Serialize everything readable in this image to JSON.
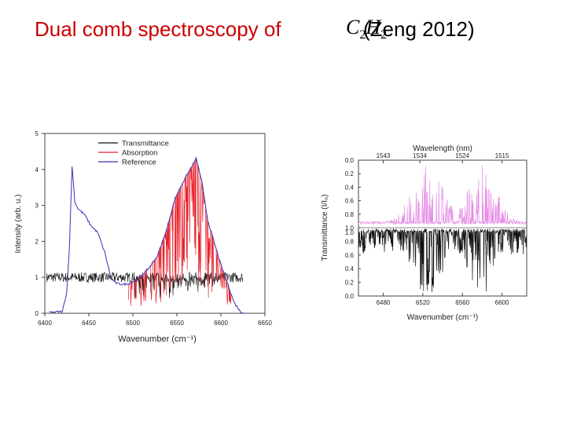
{
  "slide": {
    "title": "Dual comb spectroscopy of",
    "formula_c": "C",
    "formula_c_sub": "2",
    "formula_h": "H",
    "formula_h_sub": "2",
    "title_tail": "(Zeng 2012)"
  },
  "chart_data": [
    {
      "type": "line",
      "title": "",
      "xlabel": "Wavenumber (cm⁻¹)",
      "ylabel": "Intensity (arb. u.)",
      "xlim": [
        6400,
        6650
      ],
      "ylim": [
        0,
        5
      ],
      "x_ticks": [
        "6400",
        "6450",
        "6500",
        "6550",
        "6600",
        "6650"
      ],
      "y_ticks": [
        "0",
        "1",
        "2",
        "3",
        "4",
        "5"
      ],
      "legend_position": "top-center",
      "grid": false,
      "series": [
        {
          "name": "Transmittance",
          "color": "#111111",
          "description_points": [
            [
              6402,
              1.05
            ],
            [
              6430,
              1.0
            ],
            [
              6500,
              1.0
            ],
            [
              6560,
              1.0
            ],
            [
              6625,
              1.05
            ]
          ]
        },
        {
          "name": "Absorption",
          "color": "#e8202a",
          "description_points": [
            [
              6500,
              0.9
            ],
            [
              6520,
              1.1
            ],
            [
              6540,
              2.2
            ],
            [
              6555,
              3.3
            ],
            [
              6570,
              4.25
            ],
            [
              6580,
              3.4
            ],
            [
              6595,
              1.5
            ],
            [
              6610,
              0.6
            ]
          ]
        },
        {
          "name": "Reference",
          "color": "#3b2fb5",
          "points": [
            [
              6405,
              0.02
            ],
            [
              6420,
              0.05
            ],
            [
              6425,
              0.6
            ],
            [
              6428,
              1.9
            ],
            [
              6431,
              4.1
            ],
            [
              6434,
              3.1
            ],
            [
              6438,
              2.9
            ],
            [
              6445,
              2.75
            ],
            [
              6452,
              2.45
            ],
            [
              6460,
              2.25
            ],
            [
              6468,
              1.7
            ],
            [
              6475,
              1.0
            ],
            [
              6480,
              0.85
            ],
            [
              6488,
              0.8
            ],
            [
              6495,
              0.82
            ],
            [
              6502,
              0.9
            ],
            [
              6510,
              1.05
            ],
            [
              6518,
              1.25
            ],
            [
              6528,
              1.6
            ],
            [
              6538,
              2.3
            ],
            [
              6548,
              3.2
            ],
            [
              6558,
              3.7
            ],
            [
              6565,
              4.0
            ],
            [
              6572,
              4.3
            ],
            [
              6578,
              3.7
            ],
            [
              6585,
              2.6
            ],
            [
              6592,
              2.0
            ],
            [
              6600,
              1.35
            ],
            [
              6608,
              0.8
            ],
            [
              6615,
              0.3
            ],
            [
              6622,
              0.05
            ],
            [
              6626,
              0.02
            ]
          ]
        }
      ]
    },
    {
      "type": "line",
      "title": "",
      "xlabel": "Wavenumber (cm⁻¹)",
      "ylabel": "Transmittance (I/I₀)",
      "top_axis_label": "Wavelength (nm)",
      "xlim": [
        6455,
        6625
      ],
      "x_ticks": [
        "6480",
        "6520",
        "6560",
        "6600"
      ],
      "top_ticks": [
        "1543",
        "1534",
        "1524",
        "1515"
      ],
      "upper_y_ticks": [
        "0.0",
        "0.2",
        "0.4",
        "0.6",
        "0.8",
        "1.0"
      ],
      "lower_y_ticks": [
        "1.0",
        "0.8",
        "0.6",
        "0.4",
        "0.2",
        "0.0"
      ],
      "grid": false,
      "series": [
        {
          "name": "",
          "color": "#e58ee5",
          "panel": "upper"
        },
        {
          "name": "",
          "color": "#111111",
          "panel": "lower"
        }
      ]
    }
  ]
}
